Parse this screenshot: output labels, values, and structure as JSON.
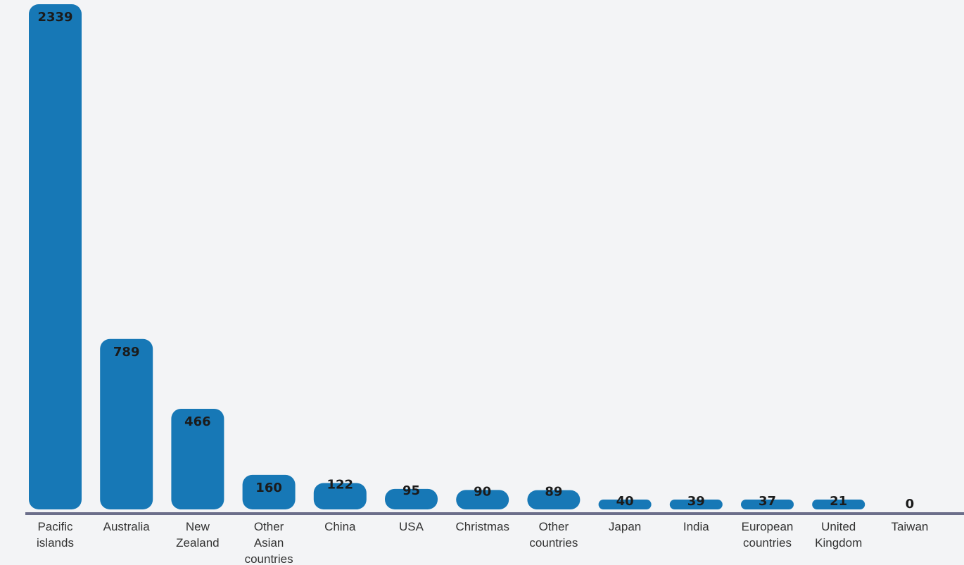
{
  "chart_data": {
    "type": "bar",
    "title": "",
    "xlabel": "",
    "ylabel": "",
    "categories": [
      "Pacific islands",
      "Australia",
      "New Zealand",
      "Other Asian countries",
      "China",
      "USA",
      "Christmas",
      "Other countries",
      "Japan",
      "India",
      "European countries",
      "United Kingdom",
      "Taiwan"
    ],
    "category_lines": [
      [
        "Pacific",
        "islands"
      ],
      [
        "Australia"
      ],
      [
        "New",
        "Zealand"
      ],
      [
        "Other",
        "Asian",
        "countries"
      ],
      [
        "China"
      ],
      [
        "USA"
      ],
      [
        "Christmas"
      ],
      [
        "Other",
        "countries"
      ],
      [
        "Japan"
      ],
      [
        "India"
      ],
      [
        "European",
        "countries"
      ],
      [
        "United",
        "Kingdom"
      ],
      [
        "Taiwan"
      ]
    ],
    "values": [
      2339,
      789,
      466,
      160,
      122,
      95,
      90,
      89,
      40,
      39,
      37,
      21,
      0
    ],
    "ylim": [
      0,
      2339
    ],
    "grid": false,
    "legend": "none",
    "bar_color": "#1778b6",
    "axis_color": "#6b6e8a"
  }
}
